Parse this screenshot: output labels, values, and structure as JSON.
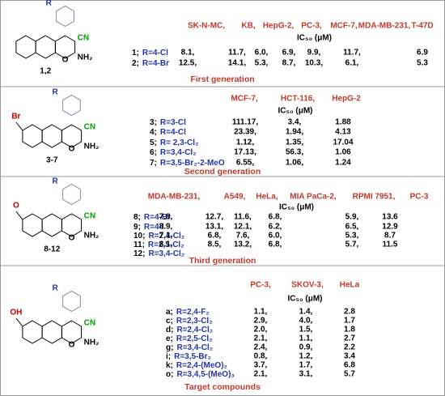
{
  "panels": [
    {
      "structure": {
        "r": "R",
        "cn": "CN",
        "o": "O",
        "nh2": "NH₂",
        "id": "1,2"
      },
      "table": {
        "headers": [
          "SK-N-MC,",
          "KB,",
          "HepG-2,",
          "PC-3,",
          "MCF-7,",
          "MDA-MB-231,",
          "T-47D"
        ],
        "subheader": "IC₅₀ (μM)",
        "rows": [
          {
            "id": "1;",
            "r": "R=4-Cl",
            "values": [
              "8.1,",
              "11.7,",
              "6.0,",
              "6.9,",
              "9.9,",
              "11.7,",
              "6.9"
            ]
          },
          {
            "id": "2;",
            "r": "R=4-Br",
            "values": [
              "12.5,",
              "14.1,",
              "5.3,",
              "8.7,",
              "10.3,",
              "6.1,",
              "5.3"
            ]
          }
        ]
      },
      "caption": "First generation"
    },
    {
      "structure": {
        "r": "R",
        "cn": "CN",
        "o": "O",
        "nh2": "NH₂",
        "id": "3-7",
        "substituent": "Br"
      },
      "table": {
        "headers": [
          "MCF-7,",
          "HCT-116,",
          "HepG-2"
        ],
        "subheader": "IC₅₀ (μM)",
        "rows": [
          {
            "id": "3;",
            "r": "R=3-Cl",
            "values": [
              "111.17,",
              "3.4,",
              "1.88"
            ]
          },
          {
            "id": "4;",
            "r": "R=4-Cl",
            "values": [
              "23.39,",
              "1.94,",
              "4.13"
            ]
          },
          {
            "id": "5;",
            "r": "R= 2,3-Cl₂",
            "values": [
              "1.12,",
              "1.35,",
              "17.04"
            ]
          },
          {
            "id": "6;",
            "r": "R=3,4-Cl₂",
            "values": [
              "17.13,",
              "56.3,",
              "1.06"
            ]
          },
          {
            "id": "7;",
            "r": "R=3,5-Br₂-2-MeO",
            "values": [
              "6.55,",
              "1.06,",
              "1.24"
            ]
          }
        ]
      },
      "caption": "Second generation"
    },
    {
      "structure": {
        "r": "R",
        "cn": "CN",
        "o": "O",
        "nh2": "NH₂",
        "id": "8-12",
        "substituent": "O"
      },
      "table": {
        "headers": [
          "MDA-MB-231,",
          "A549,",
          "HeLa,",
          "MIA PaCa-2,",
          "RPMI 7951,",
          "PC-3"
        ],
        "subheader": "IC₅₀ (μM)",
        "rows": [
          {
            "id": "8;",
            "r": "R=4-Br",
            "values": [
              "7.8,",
              "12.7,",
              "11.6,",
              "6.8,",
              "5.9,",
              "13.6"
            ]
          },
          {
            "id": "9;",
            "r": "R=4-I",
            "values": [
              "8.9,",
              "13.1,",
              "12.1,",
              "6.2,",
              "6.5,",
              "12.9"
            ]
          },
          {
            "id": "10;",
            "r": "R=2,4-Cl₂",
            "values": [
              "7.1,",
              "6.8,",
              "7.6,",
              "6.0,",
              "5.3,",
              "8.7"
            ]
          },
          {
            "id": "11;",
            "r": "R=2,5-Cl₂",
            "values": [
              "8.1,",
              "8.5,",
              "13.2,",
              "6.8,",
              "5.7,",
              "11.5"
            ]
          },
          {
            "id": "12;",
            "r": "R=3,4-Cl₂",
            "values": []
          }
        ]
      },
      "caption": "Third generation"
    },
    {
      "structure": {
        "r": "R",
        "cn": "CN",
        "o": "O",
        "nh2": "NH₂",
        "substituent": "OH"
      },
      "table": {
        "headers": [
          "PC-3,",
          "SKOV-3,",
          "HeLa"
        ],
        "subheader": "IC₅₀ (μM)",
        "rows": [
          {
            "id": "a;",
            "r": "R=2,4-F₂",
            "values": [
              "1.1,",
              "1.4,",
              "2.8"
            ]
          },
          {
            "id": "c;",
            "r": "R=2,3-Cl₂",
            "values": [
              "2.9,",
              "4.0,",
              "1.7"
            ]
          },
          {
            "id": "d;",
            "r": "R=2,4-Cl₂",
            "values": [
              "2.0,",
              "1.5,",
              "1.8"
            ]
          },
          {
            "id": "e;",
            "r": "R=2,5-Cl₂",
            "values": [
              "2.1,",
              "1.1,",
              "2.7"
            ]
          },
          {
            "id": "g;",
            "r": "R=3,4-Cl₂",
            "values": [
              "2.4,",
              "0.9,",
              "2.2"
            ]
          },
          {
            "id": "i;",
            "r": "R=3,5-Br₂",
            "values": [
              "0.8,",
              "1.2,",
              "3.4"
            ]
          },
          {
            "id": "k;",
            "r": "R=2,4-(MeO)₂",
            "values": [
              "3.7,",
              "1.7,",
              "6.8"
            ]
          },
          {
            "id": "o;",
            "r": "R=3,4,5-(MeO)₃",
            "values": [
              "2.1,",
              "3.1,",
              "5.7"
            ]
          }
        ]
      },
      "caption": "Target compounds"
    }
  ]
}
